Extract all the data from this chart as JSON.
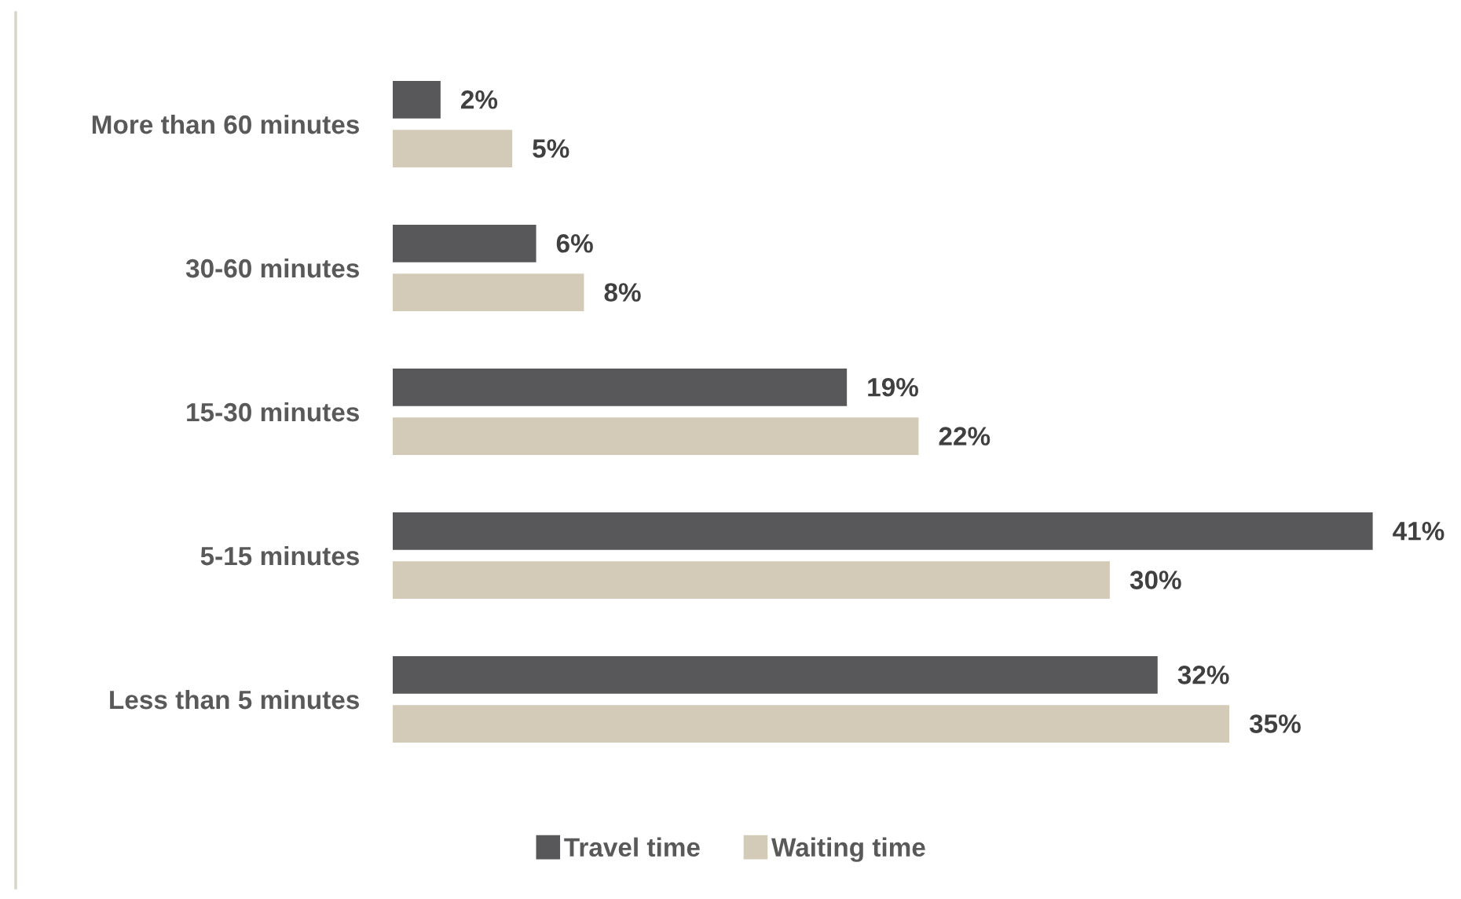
{
  "chart_data": {
    "type": "bar",
    "orientation": "horizontal",
    "categories": [
      "More than 60 minutes",
      "30-60 minutes",
      "15-30 minutes",
      "5-15 minutes",
      "Less than 5 minutes"
    ],
    "series": [
      {
        "name": "Travel time",
        "color": "#58585a",
        "values": [
          2,
          6,
          19,
          41,
          32
        ],
        "value_labels": [
          "2%",
          "6%",
          "19%",
          "41%",
          "32%"
        ]
      },
      {
        "name": "Waiting time",
        "color": "#d3cbb8",
        "values": [
          5,
          8,
          22,
          30,
          35
        ],
        "value_labels": [
          "5%",
          "8%",
          "22%",
          "30%",
          "35%"
        ]
      }
    ],
    "tick_labels": "y",
    "legend": "bottom",
    "grid": false
  }
}
